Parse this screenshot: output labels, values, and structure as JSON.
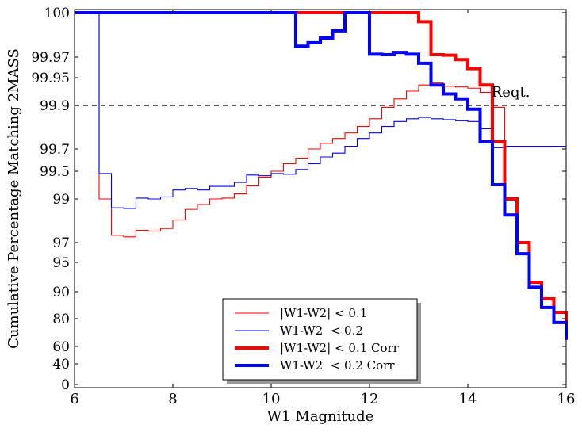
{
  "chart_data": {
    "type": "line",
    "xlabel": "W1 Magnitude",
    "ylabel": "Cumulative Percentage Matching 2MASS",
    "xlim": [
      6,
      16
    ],
    "x_ticks": [
      "6",
      "8",
      "10",
      "12",
      "14",
      "16"
    ],
    "x_tick_values": [
      6,
      8,
      10,
      12,
      14,
      16
    ],
    "y_scale": "stretched near 100% (nonlinear, -log10(100 - y))",
    "y_ticks": [
      "0",
      "40",
      "60",
      "80",
      "90",
      "95",
      "97",
      "99",
      "99.5",
      "99.7",
      "99.9",
      "99.95",
      "99.97",
      "100"
    ],
    "y_tick_values": [
      0,
      40,
      60,
      80,
      90,
      95,
      97,
      99,
      99.5,
      99.7,
      99.9,
      99.95,
      99.97,
      100
    ],
    "reference_line": {
      "value": 99.9,
      "label": "Reqt.",
      "style": "dashed",
      "color": "#000000"
    },
    "legend_position": "bottom-center",
    "series": [
      {
        "name": "|W1-W2| < 0.1",
        "color": "#ff0000",
        "linewidth": "thin",
        "x": [
          6.0,
          6.5,
          6.75,
          7.0,
          7.25,
          7.5,
          7.75,
          8.0,
          8.25,
          8.5,
          8.75,
          9.0,
          9.25,
          9.5,
          9.75,
          10.0,
          10.25,
          10.5,
          10.75,
          11.0,
          11.25,
          11.5,
          11.75,
          12.0,
          12.25,
          12.5,
          12.75,
          13.0,
          13.25,
          13.5,
          13.75,
          14.0,
          14.25,
          14.5,
          14.75
        ],
        "y": [
          100,
          99.0,
          97.5,
          97.4,
          97.8,
          97.75,
          97.9,
          98.3,
          98.7,
          98.85,
          99.0,
          99.02,
          99.12,
          99.28,
          99.42,
          99.5,
          99.58,
          99.63,
          99.7,
          99.74,
          99.77,
          99.8,
          99.83,
          99.86,
          99.895,
          99.915,
          99.93,
          99.94,
          99.943,
          99.938,
          99.937,
          99.935,
          99.928,
          99.895,
          99.72
        ]
      },
      {
        "name": "W1-W2  < 0.2",
        "color": "#0000ff",
        "linewidth": "thin",
        "x": [
          6.0,
          6.5,
          6.75,
          7.0,
          7.25,
          7.5,
          7.75,
          8.0,
          8.25,
          8.5,
          8.75,
          9.0,
          9.25,
          9.5,
          9.75,
          10.0,
          10.25,
          10.5,
          10.75,
          11.0,
          11.25,
          11.5,
          11.75,
          12.0,
          12.25,
          12.5,
          12.75,
          13.0,
          13.25,
          13.5,
          13.75,
          14.0,
          14.25,
          14.5,
          14.75
        ],
        "y": [
          100,
          99.47,
          98.75,
          98.73,
          99.02,
          99.0,
          99.05,
          99.2,
          99.23,
          99.2,
          99.27,
          99.27,
          99.34,
          99.45,
          99.44,
          99.47,
          99.46,
          99.52,
          99.58,
          99.64,
          99.67,
          99.72,
          99.77,
          99.8,
          99.83,
          99.85,
          99.86,
          99.865,
          99.86,
          99.857,
          99.853,
          99.85,
          99.82,
          99.71,
          99.72
        ]
      },
      {
        "name": "|W1-W2| < 0.1 Corr",
        "color": "#ff0000",
        "linewidth": "thick",
        "x": [
          6.0,
          13.0,
          13.25,
          13.5,
          13.75,
          14.0,
          14.25,
          14.5,
          14.75,
          15.0,
          15.25,
          15.5,
          15.75,
          16.0
        ],
        "y": [
          100,
          99.998,
          99.975,
          99.974,
          99.968,
          99.96,
          99.94,
          99.75,
          99.0,
          97.0,
          92.0,
          88.0,
          83.0,
          67.0
        ]
      },
      {
        "name": "W1-W2  < 0.2 Corr",
        "color": "#0000ff",
        "linewidth": "thick",
        "x": [
          6.0,
          10.5,
          10.75,
          11.0,
          11.25,
          11.5,
          12.0,
          12.25,
          12.5,
          12.75,
          13.0,
          13.25,
          13.5,
          13.75,
          14.0,
          14.25,
          14.5,
          14.75,
          15.0,
          15.25,
          15.5,
          15.75,
          16.0
        ],
        "y": [
          100,
          99.987,
          99.99,
          99.993,
          99.996,
          100,
          99.976,
          99.975,
          99.979,
          99.976,
          99.965,
          99.94,
          99.925,
          99.915,
          99.89,
          99.75,
          99.3,
          98.5,
          96.0,
          91.0,
          85.0,
          78.0,
          66.0
        ]
      }
    ]
  }
}
